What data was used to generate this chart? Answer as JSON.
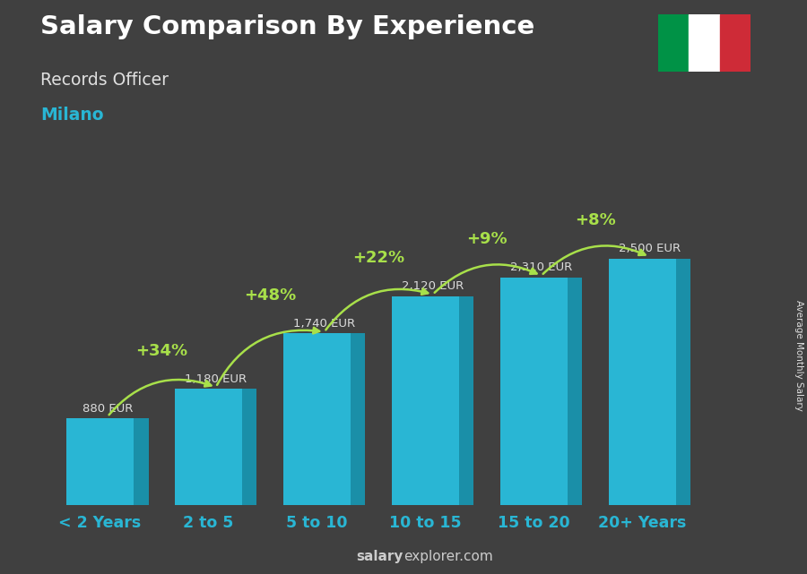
{
  "title": "Salary Comparison By Experience",
  "subtitle": "Records Officer",
  "city": "Milano",
  "categories": [
    "< 2 Years",
    "2 to 5",
    "5 to 10",
    "10 to 15",
    "15 to 20",
    "20+ Years"
  ],
  "values": [
    880,
    1180,
    1740,
    2120,
    2310,
    2500
  ],
  "value_labels": [
    "880 EUR",
    "1,180 EUR",
    "1,740 EUR",
    "2,120 EUR",
    "2,310 EUR",
    "2,500 EUR"
  ],
  "pct_labels": [
    "+34%",
    "+48%",
    "+22%",
    "+9%",
    "+8%"
  ],
  "bar_color_face": "#29b6d4",
  "bar_color_dark": "#1a8fa8",
  "bar_color_top": "#7dd8ea",
  "background_color": "#404040",
  "title_color": "#ffffff",
  "subtitle_color": "#e0e0e0",
  "city_color": "#29b6d4",
  "value_label_color": "#dddddd",
  "pct_color": "#a8e04a",
  "xticklabel_color": "#29b6d4",
  "footer_bold": "salary",
  "footer_normal": "explorer.com",
  "footer_color": "#cccccc",
  "footer_text": "salaryexplorer.com",
  "ylabel_text": "Average Monthly Salary",
  "flag_green": "#009246",
  "flag_white": "#ffffff",
  "flag_red": "#ce2b37",
  "ylim": [
    0,
    3200
  ],
  "bar_width": 0.62,
  "depth_ratio": 0.055
}
